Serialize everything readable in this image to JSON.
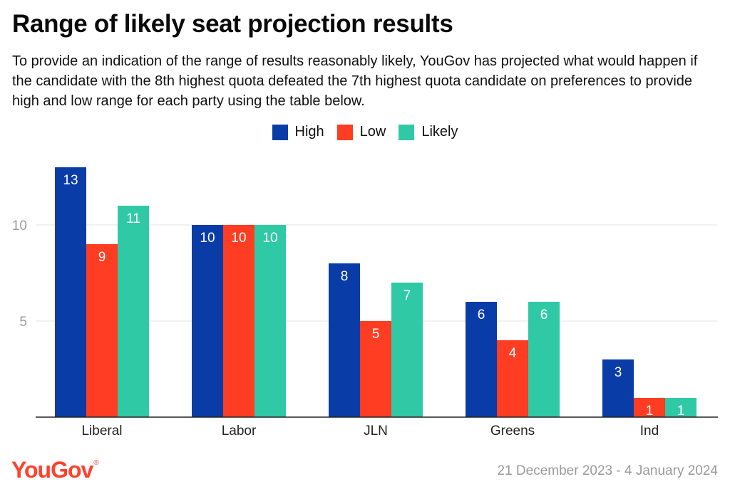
{
  "title": "Range of likely seat projection results",
  "subtitle": "To provide an indication of the range of results reasonably likely, YouGov has projected what would happen if the candidate with the 8th highest quota defeated the 7th highest quota candidate on preferences to provide high and low range for each party using the table below.",
  "brand": "YouGov",
  "date_range": "21 December 2023 - 4 January 2024",
  "colors": {
    "high": "#0a3ca8",
    "low": "#ff3d22",
    "likely": "#30c9a5",
    "brand": "#ff412c"
  },
  "chart_data": {
    "type": "bar",
    "categories": [
      "Liberal",
      "Labor",
      "JLN",
      "Greens",
      "Ind"
    ],
    "series": [
      {
        "name": "High",
        "values": [
          13,
          10,
          8,
          6,
          3
        ]
      },
      {
        "name": "Low",
        "values": [
          9,
          10,
          5,
          4,
          1
        ]
      },
      {
        "name": "Likely",
        "values": [
          11,
          10,
          7,
          6,
          1
        ]
      }
    ],
    "ylim": [
      0,
      13
    ],
    "yticks": [
      5,
      10
    ],
    "grid": true,
    "legend_position": "top-center",
    "data_labels": true
  }
}
